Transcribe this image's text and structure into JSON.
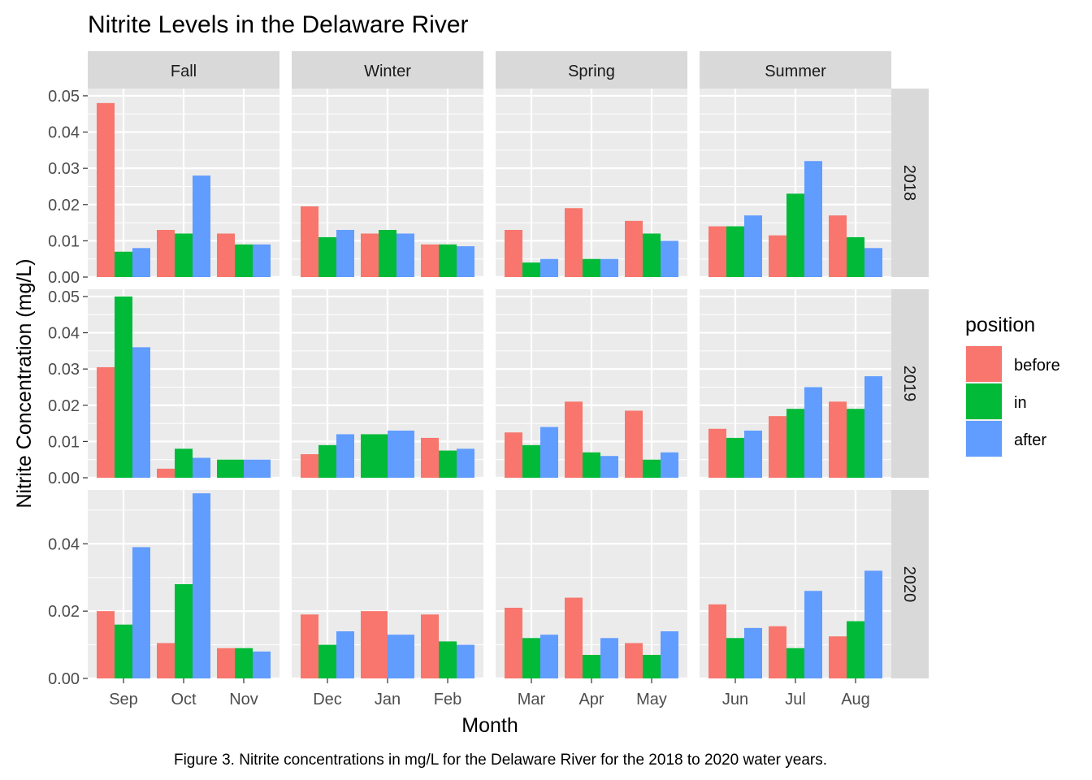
{
  "chart_data": {
    "type": "bar",
    "title": "Nitrite Levels in the Delaware River",
    "xlabel": "Month",
    "ylabel": "Nitrite Concentration (mg/L)",
    "caption": "Figure 3. Nitrite concentrations in mg/L for the Delaware River for the 2018 to 2020 water years.",
    "legend": {
      "title": "position",
      "placement": "right",
      "entries": [
        "before",
        "in",
        "after"
      ]
    },
    "colors": {
      "before": "#F8766D",
      "in": "#00BA38",
      "after": "#619CFF"
    },
    "seasons": [
      {
        "name": "Fall",
        "months": [
          "Sep",
          "Oct",
          "Nov"
        ]
      },
      {
        "name": "Winter",
        "months": [
          "Dec",
          "Jan",
          "Feb"
        ]
      },
      {
        "name": "Spring",
        "months": [
          "Mar",
          "Apr",
          "May"
        ]
      },
      {
        "name": "Summer",
        "months": [
          "Jun",
          "Jul",
          "Aug"
        ]
      }
    ],
    "years": [
      {
        "name": "2018",
        "ylim": [
          0,
          0.052
        ],
        "ticks": [
          "0.00",
          "0.01",
          "0.02",
          "0.03",
          "0.04",
          "0.05"
        ],
        "values": {
          "Sep": [
            0.048,
            0.007,
            0.008
          ],
          "Oct": [
            0.013,
            0.012,
            0.028
          ],
          "Nov": [
            0.012,
            0.009,
            0.009
          ],
          "Dec": [
            0.0195,
            0.011,
            0.013
          ],
          "Jan": [
            0.012,
            0.013,
            0.012
          ],
          "Feb": [
            0.009,
            0.009,
            0.0085
          ],
          "Mar": [
            0.013,
            0.004,
            0.005
          ],
          "Apr": [
            0.019,
            0.005,
            0.005
          ],
          "May": [
            0.0155,
            0.012,
            0.01
          ],
          "Jun": [
            0.014,
            0.014,
            0.017
          ],
          "Jul": [
            0.0115,
            0.023,
            0.032
          ],
          "Aug": [
            0.017,
            0.011,
            0.008
          ]
        }
      },
      {
        "name": "2019",
        "ylim": [
          0,
          0.052
        ],
        "ticks": [
          "0.00",
          "0.01",
          "0.02",
          "0.03",
          "0.04",
          "0.05"
        ],
        "values": {
          "Sep": [
            0.0305,
            0.05,
            0.036
          ],
          "Oct": [
            0.0025,
            0.008,
            0.0055
          ],
          "Nov": [
            null,
            0.005,
            0.005
          ],
          "Dec": [
            0.0065,
            0.009,
            0.012
          ],
          "Jan": [
            null,
            0.012,
            0.013
          ],
          "Feb": [
            0.011,
            0.0075,
            0.008
          ],
          "Mar": [
            0.0125,
            0.009,
            0.014
          ],
          "Apr": [
            0.021,
            0.007,
            0.006
          ],
          "May": [
            0.0185,
            0.005,
            0.007
          ],
          "Jun": [
            0.0135,
            0.011,
            0.013
          ],
          "Jul": [
            0.017,
            0.019,
            0.025
          ],
          "Aug": [
            0.021,
            0.019,
            0.028
          ]
        }
      },
      {
        "name": "2020",
        "ylim": [
          0,
          0.056
        ],
        "ticks": [
          "0.00",
          "0.02",
          "0.04"
        ],
        "values": {
          "Sep": [
            0.02,
            0.016,
            0.039
          ],
          "Oct": [
            0.0105,
            0.028,
            0.055
          ],
          "Nov": [
            0.009,
            0.009,
            0.008
          ],
          "Dec": [
            0.019,
            0.01,
            0.014
          ],
          "Jan": [
            0.02,
            null,
            0.013
          ],
          "Feb": [
            0.019,
            0.011,
            0.01
          ],
          "Mar": [
            0.021,
            0.012,
            0.013
          ],
          "Apr": [
            0.024,
            0.007,
            0.012
          ],
          "May": [
            0.0105,
            0.007,
            0.014
          ],
          "Jun": [
            0.022,
            0.012,
            0.015
          ],
          "Jul": [
            0.0155,
            0.009,
            0.026
          ],
          "Aug": [
            0.0125,
            0.017,
            0.032
          ]
        }
      }
    ]
  }
}
